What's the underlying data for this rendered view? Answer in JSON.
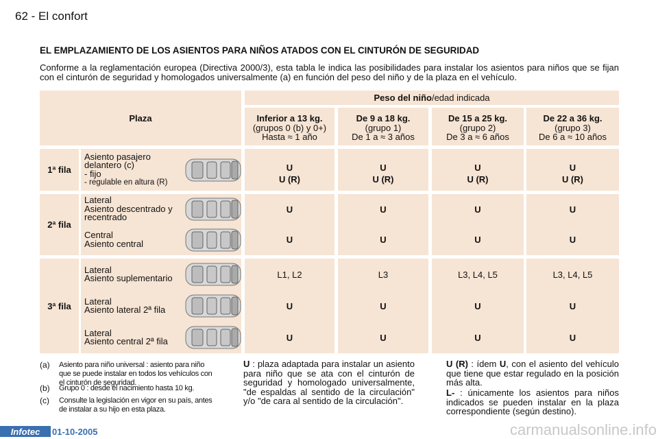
{
  "header": {
    "page": "62",
    "section": "El confort"
  },
  "title": "EL EMPLAZAMIENTO DE LOS ASIENTOS PARA NIÑOS ATADOS CON EL CINTURÓN DE SEGURIDAD",
  "intro": "Conforme a la reglamentación europea (Directiva 2000/3), esta tabla le indica las posibilidades para instalar los asientos para niños que se fijan con el cinturón de seguridad y homologados universalmente (a) en función del peso del niño y de la plaza en el vehículo.",
  "table": {
    "corner": "Plaza",
    "weight_header": {
      "bold": "Peso del niño",
      "rest": "/edad indicada"
    },
    "columns": [
      {
        "weight": "Inferior a 13 kg.",
        "group": "(grupos 0 (b) y 0+)",
        "age": "Hasta ≈ 1 año"
      },
      {
        "weight": "De 9 a 18 kg.",
        "group": "(grupo 1)",
        "age": "De 1 a ≈ 3 años"
      },
      {
        "weight": "De 15 a 25 kg.",
        "group": "(grupo 2)",
        "age": "De 3 a ≈ 6 años"
      },
      {
        "weight": "De 22 a 36 kg.",
        "group": "(grupo 3)",
        "age": "De 6 a ≈ 10 años"
      }
    ],
    "rows": [
      {
        "label": "1ª fila",
        "items": [
          {
            "lines": [
              "Asiento pasajero",
              "delantero (c)",
              "- fijo",
              "- regulable en altura (R)"
            ],
            "cells": [
              [
                "U",
                "U (R)"
              ],
              [
                "U",
                "U (R)"
              ],
              [
                "U",
                "U (R)"
              ],
              [
                "U",
                "U (R)"
              ]
            ]
          }
        ]
      },
      {
        "label": "2ª fila",
        "items": [
          {
            "lines": [
              "Lateral",
              "Asiento descentrado y",
              "recentrado"
            ],
            "cells": [
              [
                "U"
              ],
              [
                "U"
              ],
              [
                "U"
              ],
              [
                "U"
              ]
            ]
          },
          {
            "lines": [
              "Central",
              "Asiento central"
            ],
            "cells": [
              [
                "U"
              ],
              [
                "U"
              ],
              [
                "U"
              ],
              [
                "U"
              ]
            ]
          }
        ]
      },
      {
        "label": "3ª fila",
        "items": [
          {
            "lines": [
              "Lateral",
              "Asiento suplementario"
            ],
            "cells": [
              [
                "L1, L2"
              ],
              [
                "L3"
              ],
              [
                "L3, L4, L5"
              ],
              [
                "L3, L4, L5"
              ]
            ]
          },
          {
            "lines": [
              "Lateral",
              "Asiento lateral 2ª fila"
            ],
            "cells": [
              [
                "U"
              ],
              [
                "U"
              ],
              [
                "U"
              ],
              [
                "U"
              ]
            ]
          },
          {
            "lines": [
              "Lateral",
              "Asiento central 2ª fila"
            ],
            "cells": [
              [
                "U"
              ],
              [
                "U"
              ],
              [
                "U"
              ],
              [
                "U"
              ]
            ]
          }
        ]
      }
    ]
  },
  "footnotes": [
    {
      "mark": "(a)",
      "text": "Asiento para niño universal : asiento para niño que se puede instalar en todos los vehículos con el cinturón de seguridad."
    },
    {
      "mark": "(b)",
      "text": "Grupo 0 : desde el nacimiento hasta 10 kg."
    },
    {
      "mark": "(c)",
      "text": "Consulte la legislación en vigor en su país, antes de instalar a su hijo en esta plaza."
    }
  ],
  "legend_u": {
    "term": "U",
    "text": " : plaza adaptada para instalar un asiento para niño que se ata con el cinturón de seguridad y homologado universalmente, \"de espaldas al sentido de la circulación\" y/o \"de cara al sentido de la circulación\"."
  },
  "legend_ur": [
    {
      "text": "U (R)",
      "bold": true
    },
    {
      "text": " : ídem ",
      "bold": false
    },
    {
      "text": "U",
      "bold": true
    },
    {
      "text": ", con el asiento del vehículo que tiene que estar regulado en la posición más alta.",
      "bold": false
    }
  ],
  "legend_l": {
    "term": "L-",
    "text": " : únicamente los asientos para niños indicados se pueden instalar en la plaza correspondiente (según destino)."
  },
  "footer": {
    "brand": "Infotec",
    "date": "01-10-2005",
    "watermark": "carmanualsonline.info"
  }
}
